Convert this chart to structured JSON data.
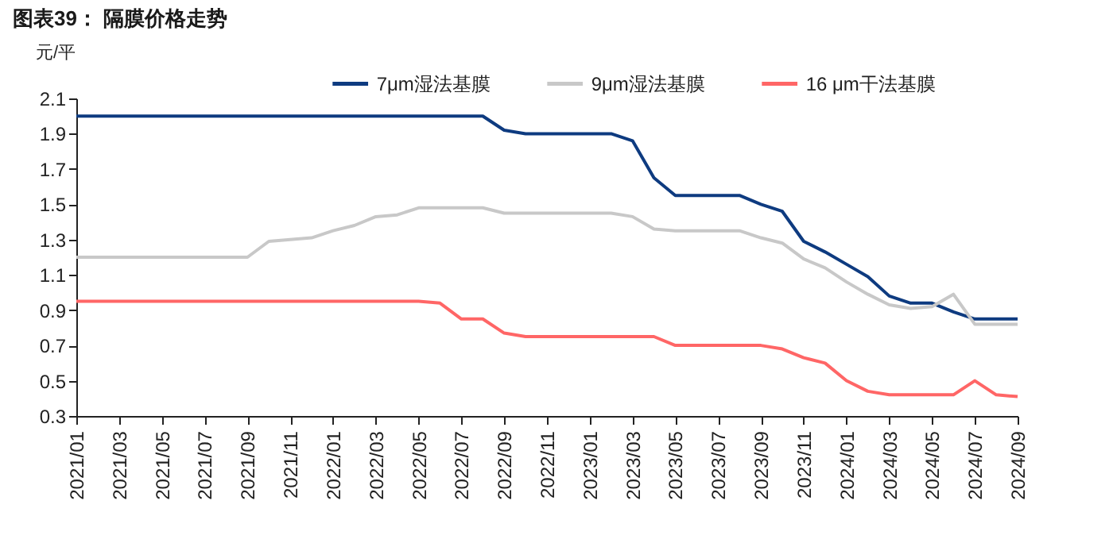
{
  "chart_data": {
    "type": "line",
    "title": "图表39： 隔膜价格走势",
    "ylabel": "元/平",
    "categories": [
      "2021/01",
      null,
      "2021/03",
      null,
      "2021/05",
      null,
      "2021/07",
      null,
      "2021/09",
      null,
      "2021/11",
      null,
      "2022/01",
      null,
      "2022/03",
      null,
      "2022/05",
      null,
      "2022/07",
      null,
      "2022/09",
      null,
      "2022/11",
      null,
      "2023/01",
      null,
      "2023/03",
      null,
      "2023/05",
      null,
      "2023/07",
      null,
      "2023/09",
      null,
      "2023/11",
      null,
      "2024/01",
      null,
      "2024/03",
      null,
      "2024/05",
      null,
      "2024/07",
      null,
      "2024/09"
    ],
    "series": [
      {
        "name": "7μm湿法基膜",
        "color": "#0e3b80",
        "values": [
          2.0,
          2.0,
          2.0,
          2.0,
          2.0,
          2.0,
          2.0,
          2.0,
          2.0,
          2.0,
          2.0,
          2.0,
          2.0,
          2.0,
          2.0,
          2.0,
          2.0,
          2.0,
          2.0,
          2.0,
          1.92,
          1.9,
          1.9,
          1.9,
          1.9,
          1.9,
          1.86,
          1.65,
          1.55,
          1.55,
          1.55,
          1.55,
          1.5,
          1.46,
          1.29,
          1.23,
          1.16,
          1.09,
          0.98,
          0.94,
          0.94,
          0.89,
          0.85,
          0.85,
          0.85
        ]
      },
      {
        "name": "9μm湿法基膜",
        "color": "#c8c8c8",
        "values": [
          1.2,
          1.2,
          1.2,
          1.2,
          1.2,
          1.2,
          1.2,
          1.2,
          1.2,
          1.29,
          1.3,
          1.31,
          1.35,
          1.38,
          1.43,
          1.44,
          1.48,
          1.48,
          1.48,
          1.48,
          1.45,
          1.45,
          1.45,
          1.45,
          1.45,
          1.45,
          1.43,
          1.36,
          1.35,
          1.35,
          1.35,
          1.35,
          1.31,
          1.28,
          1.19,
          1.14,
          1.06,
          0.99,
          0.93,
          0.91,
          0.92,
          0.99,
          0.82,
          0.82,
          0.82
        ]
      },
      {
        "name": "16 μm干法基膜",
        "color": "#ff6666",
        "values": [
          0.95,
          0.95,
          0.95,
          0.95,
          0.95,
          0.95,
          0.95,
          0.95,
          0.95,
          0.95,
          0.95,
          0.95,
          0.95,
          0.95,
          0.95,
          0.95,
          0.95,
          0.94,
          0.85,
          0.85,
          0.77,
          0.75,
          0.75,
          0.75,
          0.75,
          0.75,
          0.75,
          0.75,
          0.7,
          0.7,
          0.7,
          0.7,
          0.7,
          0.68,
          0.63,
          0.6,
          0.5,
          0.44,
          0.42,
          0.42,
          0.42,
          0.42,
          0.5,
          0.42,
          0.41
        ]
      }
    ],
    "ylim": [
      0.3,
      2.1
    ],
    "yticks": [
      0.3,
      0.5,
      0.7,
      0.9,
      1.1,
      1.3,
      1.5,
      1.7,
      1.9,
      2.1
    ],
    "legend": "top"
  }
}
